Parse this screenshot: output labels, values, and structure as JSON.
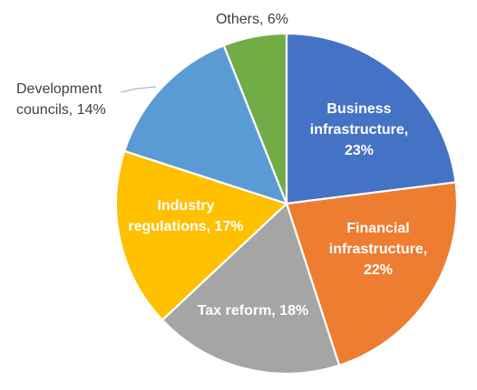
{
  "chart_data": {
    "type": "pie",
    "title": "",
    "start_angle_deg": 0,
    "direction": "clockwise",
    "legend": "none",
    "slices": [
      {
        "key": "business",
        "label_lines": [
          "Business",
          "infrastructure,",
          "23%"
        ],
        "value": 23,
        "color": "#4472C4",
        "label_position": "inside",
        "label_color": "#FFFFFF"
      },
      {
        "key": "financial",
        "label_lines": [
          "Financial",
          "infrastructure,",
          "22%"
        ],
        "value": 22,
        "color": "#ED7D31",
        "label_position": "inside",
        "label_color": "#FFFFFF"
      },
      {
        "key": "tax",
        "label_lines": [
          "Tax reform, 18%"
        ],
        "value": 18,
        "color": "#A5A5A5",
        "label_position": "inside",
        "label_color": "#FFFFFF"
      },
      {
        "key": "industry",
        "label_lines": [
          "Industry",
          "regulations, 17%"
        ],
        "value": 17,
        "color": "#FFC000",
        "label_position": "inside",
        "label_color": "#FFFFFF"
      },
      {
        "key": "development",
        "label_lines": [
          "Development",
          "councils, 14%"
        ],
        "value": 14,
        "color": "#5B9BD5",
        "label_position": "outside",
        "label_color": "#404040"
      },
      {
        "key": "others",
        "label_lines": [
          "Others, 6%"
        ],
        "value": 6,
        "color": "#70AD47",
        "label_position": "outside",
        "label_color": "#404040"
      }
    ]
  }
}
